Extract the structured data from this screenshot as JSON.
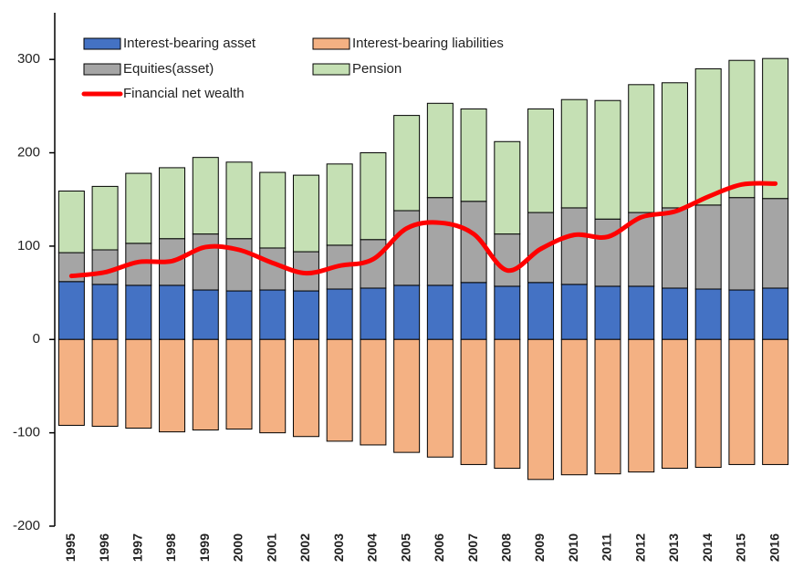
{
  "chart_data": {
    "type": "bar",
    "stacked": true,
    "categories": [
      "1995",
      "1996",
      "1997",
      "1998",
      "1999",
      "2000",
      "2001",
      "2002",
      "2003",
      "2004",
      "2005",
      "2006",
      "2007",
      "2008",
      "2009",
      "2010",
      "2011",
      "2012",
      "2013",
      "2014",
      "2015",
      "2016"
    ],
    "series": [
      {
        "name": "Interest-bearing asset",
        "color": "#4472c4",
        "values": [
          62,
          59,
          58,
          58,
          53,
          52,
          53,
          52,
          54,
          55,
          58,
          58,
          61,
          57,
          61,
          59,
          57,
          57,
          55,
          54,
          53,
          55
        ]
      },
      {
        "name": "Interest-bearing liabilities",
        "color": "#f4b183",
        "values": [
          -92,
          -93,
          -95,
          -99,
          -97,
          -96,
          -100,
          -104,
          -109,
          -113,
          -121,
          -126,
          -134,
          -138,
          -150,
          -145,
          -144,
          -142,
          -138,
          -137,
          -134,
          -134
        ]
      },
      {
        "name": "Equities(asset)",
        "color": "#a5a5a5",
        "values": [
          31,
          37,
          45,
          50,
          60,
          56,
          45,
          42,
          47,
          52,
          80,
          94,
          87,
          56,
          75,
          82,
          72,
          79,
          86,
          90,
          99,
          96
        ]
      },
      {
        "name": "Pension",
        "color": "#c5e0b4",
        "values": [
          66,
          68,
          75,
          76,
          82,
          82,
          81,
          82,
          87,
          93,
          102,
          101,
          99,
          99,
          111,
          116,
          127,
          137,
          134,
          146,
          147,
          150
        ]
      },
      {
        "name": "Financial net wealth",
        "color": "#ff0000",
        "type": "line",
        "values": [
          68,
          72,
          83,
          84,
          99,
          96,
          82,
          71,
          79,
          86,
          119,
          125,
          113,
          74,
          97,
          112,
          110,
          131,
          137,
          153,
          166,
          167
        ]
      }
    ],
    "ylim": [
      -200,
      350
    ],
    "yticks": [
      -200,
      -100,
      0,
      100,
      200,
      300
    ]
  }
}
